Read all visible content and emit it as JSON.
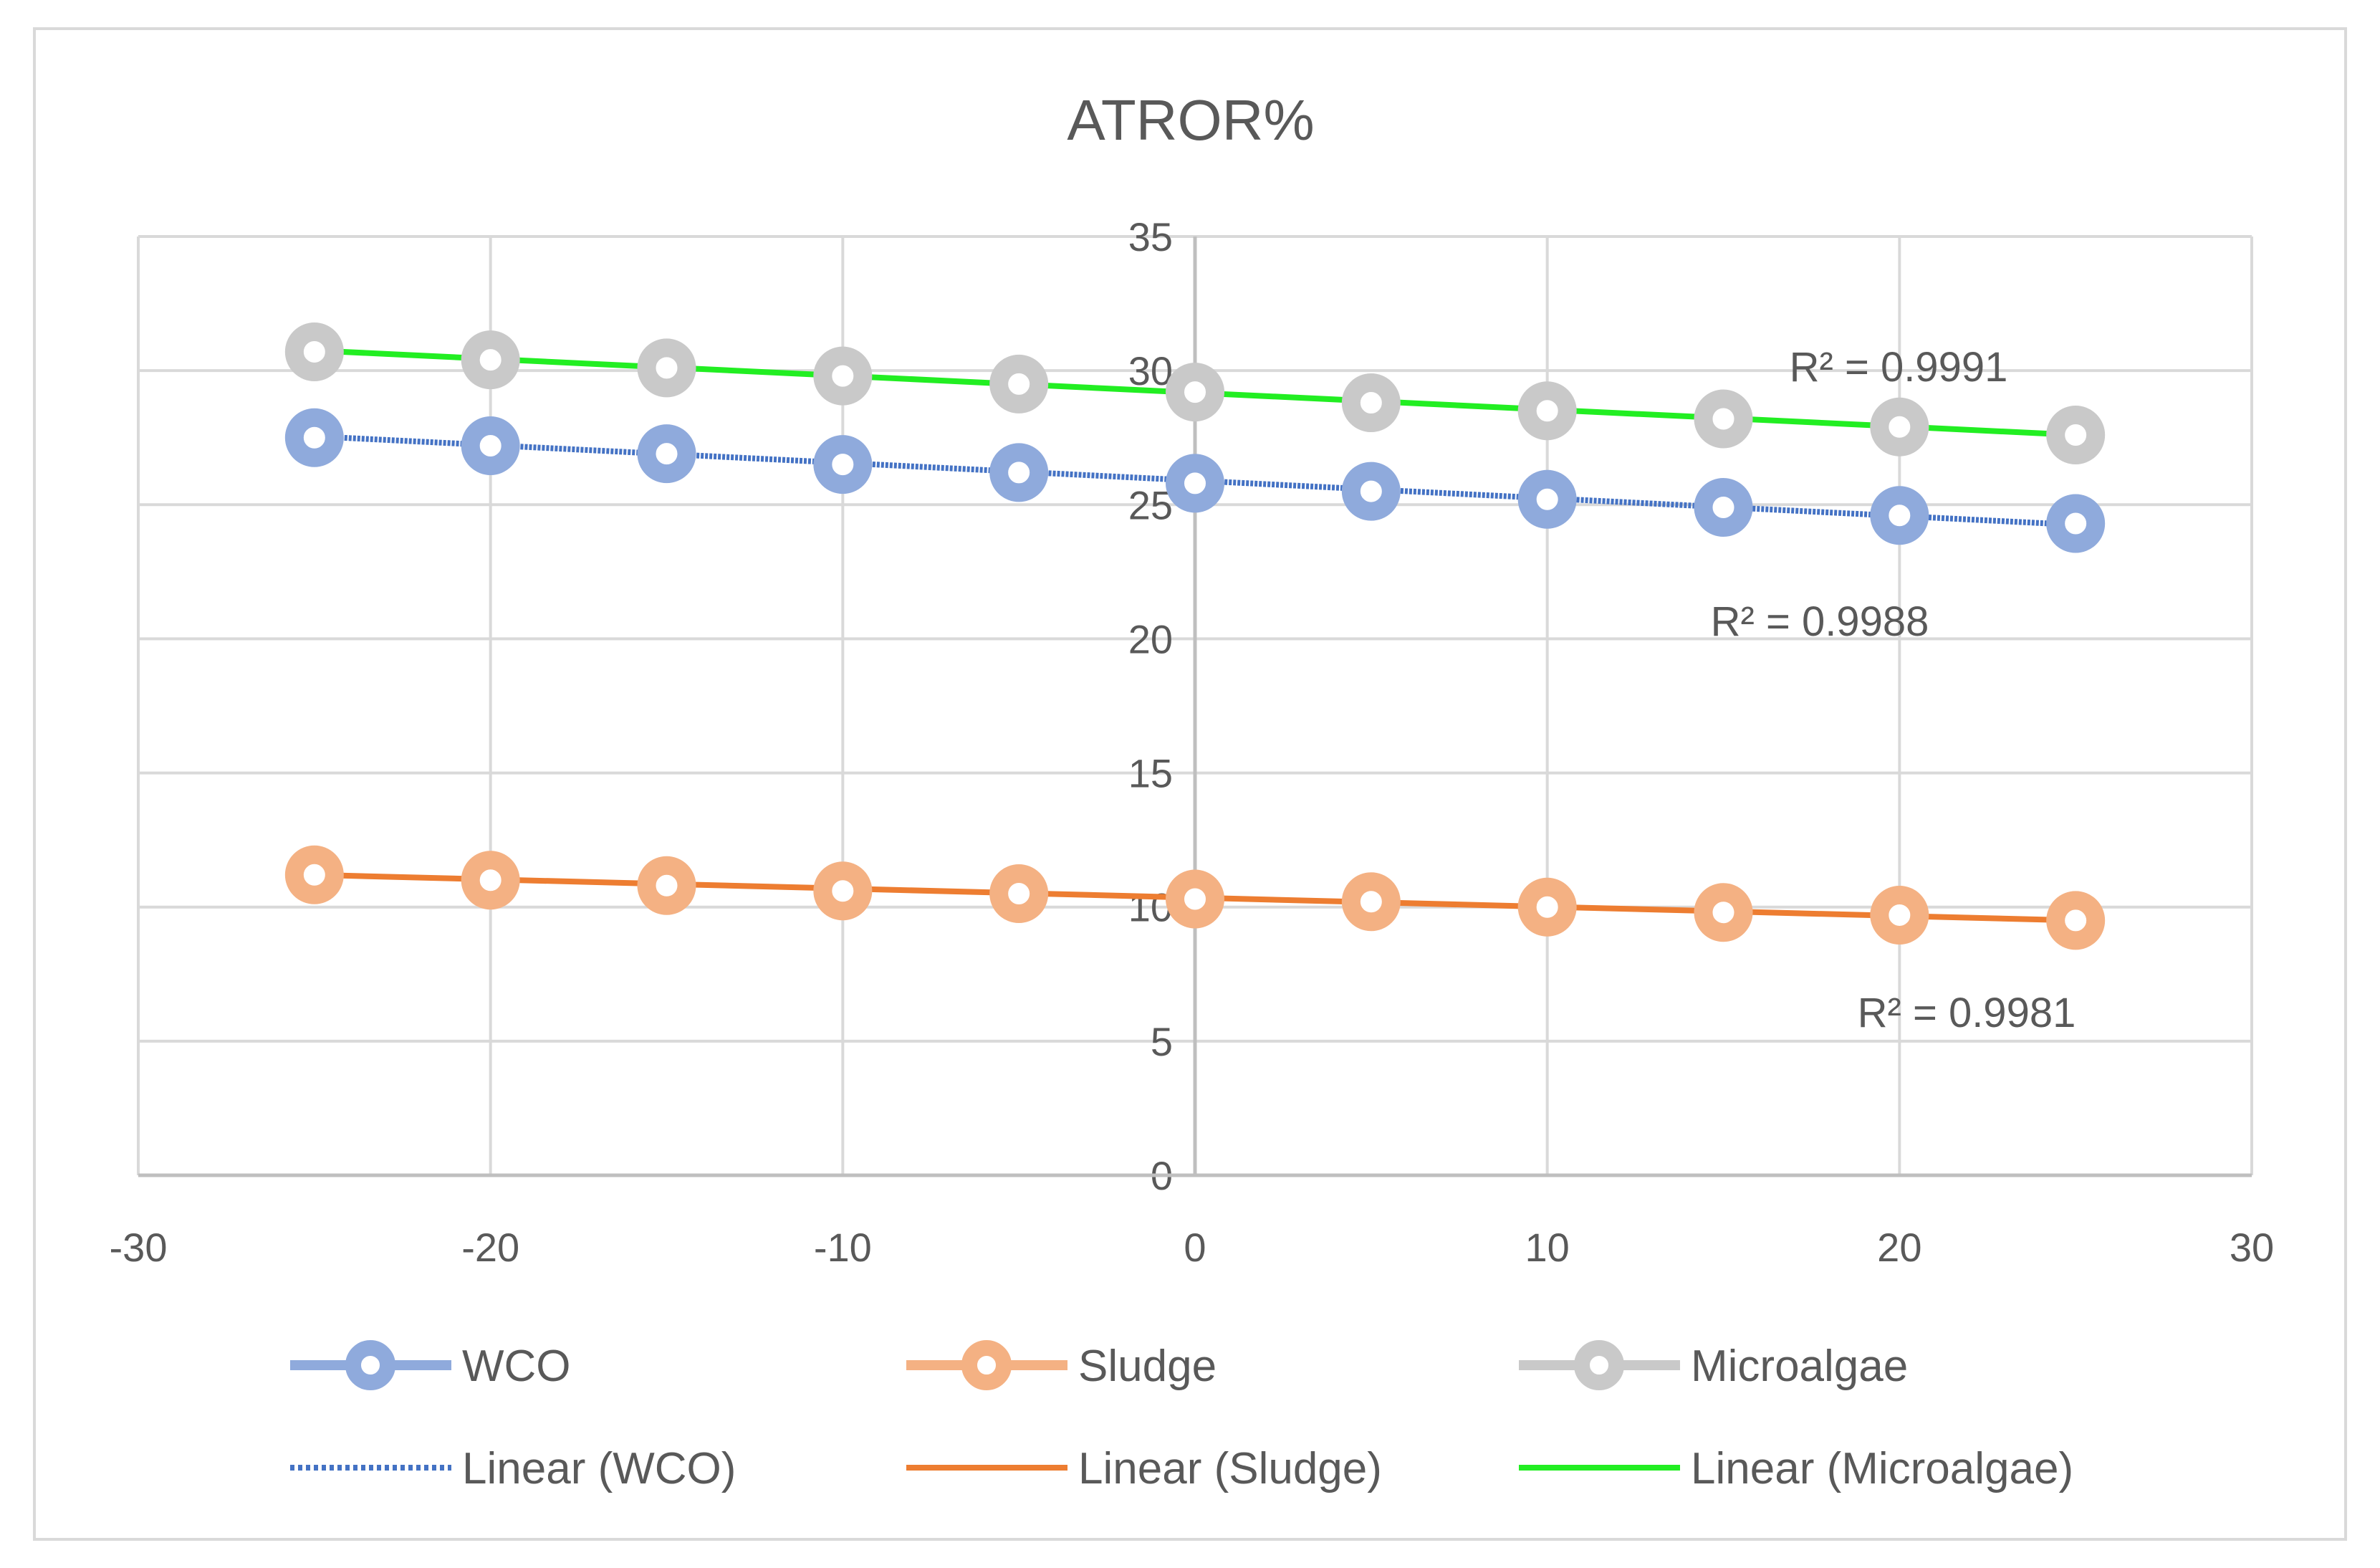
{
  "chart_data": {
    "type": "scatter",
    "title": "ATROR%",
    "xlabel": "",
    "ylabel": "",
    "xlim": [
      -30,
      30
    ],
    "ylim": [
      0,
      35
    ],
    "x_ticks": [
      -30,
      -20,
      -10,
      0,
      10,
      20,
      30
    ],
    "y_ticks": [
      0,
      5,
      10,
      15,
      20,
      25,
      30,
      35
    ],
    "grid": true,
    "legend_position": "bottom",
    "x": [
      -25,
      -20,
      -15,
      -10,
      -5,
      0,
      5,
      10,
      15,
      20,
      25
    ],
    "series": [
      {
        "name": "WCO",
        "color": "#8FAADC",
        "values": [
          27.5,
          27.2,
          26.9,
          26.5,
          26.2,
          25.8,
          25.5,
          25.2,
          24.9,
          24.6,
          24.3
        ],
        "trendline": {
          "name": "Linear (WCO)",
          "color": "#4472C4",
          "style": "dotted",
          "start": 27.55,
          "end": 24.25,
          "r2": "R² = 0.9988"
        }
      },
      {
        "name": "Sludge",
        "color": "#F4B183",
        "values": [
          11.2,
          11.0,
          10.8,
          10.6,
          10.5,
          10.3,
          10.2,
          10.0,
          9.8,
          9.7,
          9.5
        ],
        "trendline": {
          "name": "Linear (Sludge)",
          "color": "#ED7D31",
          "style": "solid",
          "start": 11.2,
          "end": 9.5,
          "r2": "R² = 0.9981"
        }
      },
      {
        "name": "Microalgae",
        "color": "#C9C9C9",
        "values": [
          30.7,
          30.4,
          30.1,
          29.8,
          29.5,
          29.2,
          28.8,
          28.5,
          28.2,
          27.9,
          27.6
        ],
        "trendline": {
          "name": "Linear (Microalgae)",
          "color": "#22EE22",
          "style": "solid",
          "start": 30.75,
          "end": 27.6,
          "r2": "R² = 0.9991"
        }
      }
    ]
  }
}
